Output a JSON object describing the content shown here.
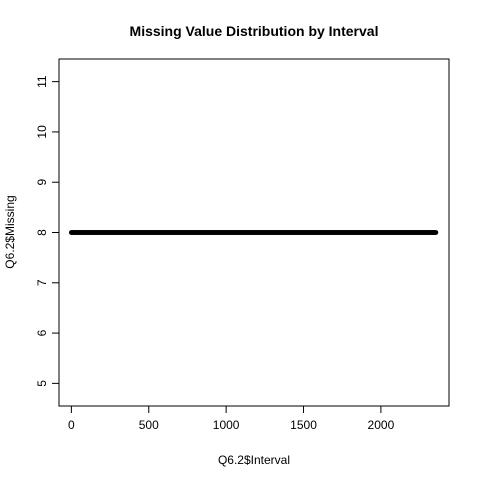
{
  "chart_data": {
    "type": "scatter",
    "title": "Missing Value Distribution by Interval",
    "xlabel": "Q6.2$Interval",
    "ylabel": "Q6.2$Missing",
    "xlim": [
      -80,
      2440
    ],
    "ylim": [
      4.55,
      11.45
    ],
    "xticks": [
      0,
      500,
      1000,
      1500,
      2000
    ],
    "yticks": [
      5,
      6,
      7,
      8,
      9,
      10,
      11
    ],
    "x_range": [
      0,
      2355
    ],
    "x_step": 5,
    "constant_y": 8,
    "grid": false,
    "legend": "none",
    "point_color": "#000000"
  }
}
